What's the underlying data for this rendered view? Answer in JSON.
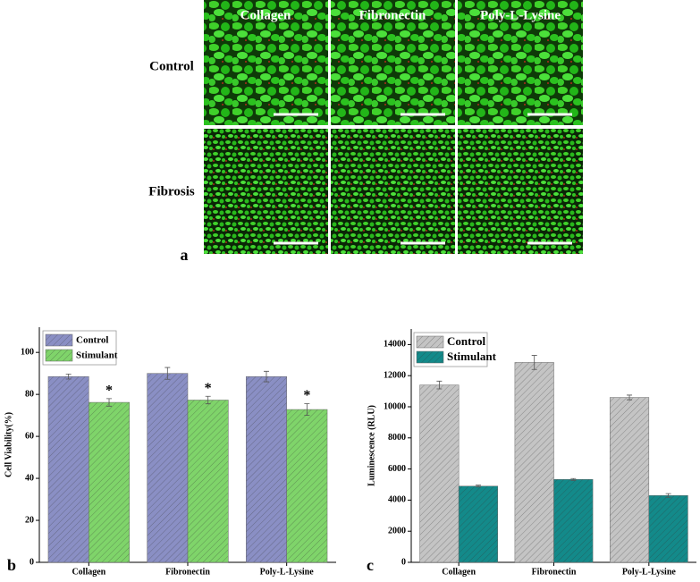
{
  "panel_a": {
    "label": "a",
    "columns": [
      "Collagen",
      "Fibronectin",
      "Poly-L-Lysine"
    ],
    "rows": [
      "Control",
      "Fibrosis"
    ]
  },
  "chart_data": [
    {
      "type": "bar",
      "panel_label": "b",
      "y_label": "Cell Viability(%)",
      "categories": [
        "Collagen",
        "Fibronectin",
        "Poly-L-Lysine"
      ],
      "series": [
        {
          "name": "Control",
          "color": "#8a8fc4",
          "values": [
            88.5,
            90,
            88.5
          ],
          "errors": [
            1.2,
            2.8,
            2.5
          ]
        },
        {
          "name": "Stimulant",
          "color": "#7fd46a",
          "values": [
            76.2,
            77.3,
            72.8
          ],
          "errors": [
            1.8,
            1.8,
            2.8
          ],
          "annotations": [
            "*",
            "*",
            "*"
          ]
        }
      ],
      "ylim": [
        0,
        112
      ],
      "yticks": [
        0,
        20,
        40,
        60,
        80,
        100
      ],
      "legend": "upper left"
    },
    {
      "type": "bar",
      "panel_label": "c",
      "y_label": "Luminescence (RLU)",
      "categories": [
        "Collagen",
        "Fibronectin",
        "Poly-L-Lysine"
      ],
      "series": [
        {
          "name": "Control",
          "color": "#c4c4c4",
          "values": [
            11400,
            12850,
            10600
          ],
          "errors": [
            250,
            450,
            150
          ]
        },
        {
          "name": "Stimulant",
          "color": "#138a8a",
          "values": [
            4900,
            5330,
            4300
          ],
          "errors": [
            60,
            60,
            120
          ]
        }
      ],
      "ylim": [
        0,
        15000
      ],
      "yticks": [
        0,
        2000,
        4000,
        6000,
        8000,
        10000,
        12000,
        14000
      ],
      "legend": "upper left"
    }
  ]
}
